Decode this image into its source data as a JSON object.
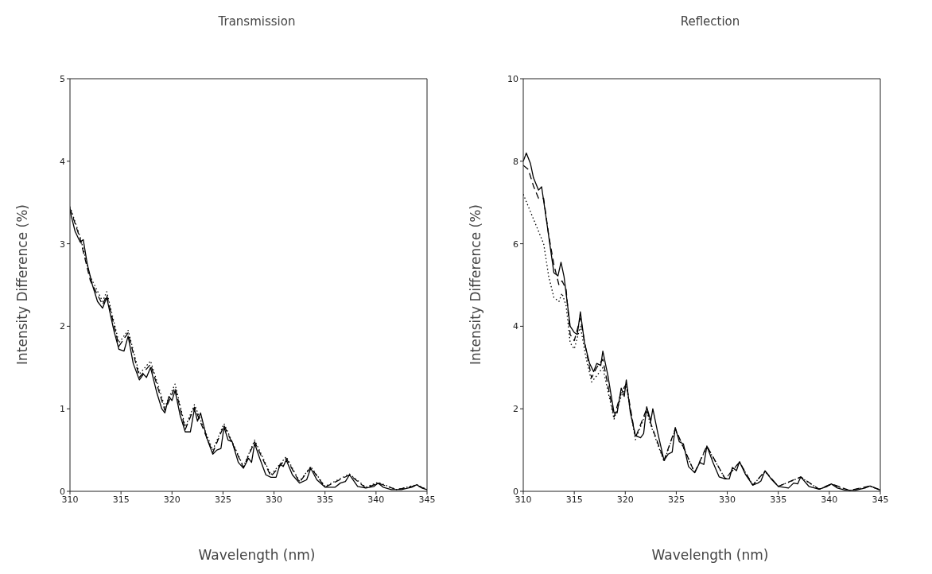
{
  "chart_data": [
    {
      "type": "line",
      "title": "Transmission",
      "xlabel": "Wavelength (nm)",
      "ylabel": "Intensity Difference (%)",
      "xlim": [
        310,
        345
      ],
      "xticks": [
        310,
        315,
        320,
        325,
        330,
        335,
        340,
        345
      ],
      "ylim": [
        0,
        5
      ],
      "yticks": [
        0,
        1,
        2,
        3,
        4,
        5
      ],
      "grid": false,
      "legend": false,
      "marker": "none",
      "series": [
        {
          "color": "#000000",
          "line_style": "solid",
          "x": [
            310,
            310.5,
            311,
            311.3,
            311.7,
            312.2,
            312.7,
            313.2,
            313.6,
            314.3,
            314.8,
            315.3,
            315.7,
            316.2,
            316.8,
            317.2,
            317.5,
            317.9,
            318.5,
            319,
            319.3,
            319.7,
            320,
            320.3,
            320.8,
            321.3,
            321.8,
            322.2,
            322.5,
            322.8,
            323.4,
            324,
            324.4,
            324.8,
            325.1,
            325.5,
            325.9,
            326.5,
            327,
            327.5,
            327.8,
            328.1,
            328.6,
            329.2,
            329.7,
            330.2,
            330.6,
            330.9,
            331.2,
            331.8,
            332.5,
            333.2,
            333.6,
            334.2,
            335,
            336,
            336.5,
            337,
            337.4,
            338.2,
            339,
            339.8,
            340.2,
            340.7,
            341.5,
            342.5,
            343.5,
            344,
            344.5,
            345
          ],
          "values": [
            3.4,
            3.15,
            3.02,
            3.05,
            2.75,
            2.5,
            2.3,
            2.22,
            2.35,
            1.95,
            1.72,
            1.7,
            1.88,
            1.55,
            1.35,
            1.42,
            1.38,
            1.5,
            1.2,
            1.0,
            0.95,
            1.15,
            1.1,
            1.22,
            0.92,
            0.72,
            0.72,
            1.0,
            0.85,
            0.95,
            0.65,
            0.45,
            0.5,
            0.52,
            0.78,
            0.62,
            0.6,
            0.35,
            0.28,
            0.4,
            0.35,
            0.58,
            0.4,
            0.2,
            0.17,
            0.17,
            0.33,
            0.3,
            0.38,
            0.2,
            0.1,
            0.14,
            0.28,
            0.14,
            0.05,
            0.05,
            0.1,
            0.12,
            0.2,
            0.06,
            0.04,
            0.06,
            0.1,
            0.05,
            0.02,
            0.02,
            0.05,
            0.08,
            0.04,
            0.02
          ]
        },
        {
          "color": "#000000",
          "line_style": "dashed",
          "x": [
            310,
            311,
            312,
            313.2,
            313.6,
            314.8,
            315.7,
            316.8,
            317.9,
            319.3,
            320.3,
            321.3,
            322.2,
            324,
            325.1,
            327,
            328.1,
            329.7,
            331.2,
            332.5,
            333.6,
            335,
            337.4,
            339,
            340.2,
            342,
            344,
            345
          ],
          "values": [
            3.43,
            3.06,
            2.55,
            2.26,
            2.38,
            1.76,
            1.92,
            1.38,
            1.54,
            0.98,
            1.26,
            0.75,
            1.02,
            0.47,
            0.8,
            0.29,
            0.6,
            0.18,
            0.4,
            0.11,
            0.29,
            0.05,
            0.2,
            0.04,
            0.1,
            0.02,
            0.07,
            0.02
          ]
        },
        {
          "color": "#000000",
          "line_style": "dotted",
          "x": [
            310,
            311,
            312,
            313.2,
            313.6,
            314.8,
            315.7,
            316.8,
            317.9,
            319.3,
            320.3,
            321.3,
            322.2,
            324,
            325.1,
            327,
            328.1,
            329.7,
            331.2,
            332.5,
            333.6,
            335,
            337.4,
            339,
            340.2,
            342,
            344,
            345
          ],
          "values": [
            3.45,
            3.08,
            2.6,
            2.3,
            2.42,
            1.8,
            1.95,
            1.42,
            1.58,
            1.02,
            1.3,
            0.78,
            1.05,
            0.5,
            0.82,
            0.3,
            0.62,
            0.2,
            0.42,
            0.12,
            0.3,
            0.06,
            0.21,
            0.05,
            0.11,
            0.02,
            0.08,
            0.02
          ]
        }
      ]
    },
    {
      "type": "line",
      "title": "Reflection",
      "xlabel": "Wavelength (nm)",
      "ylabel": "Intensity Difference (%)",
      "xlim": [
        310,
        345
      ],
      "xticks": [
        310,
        315,
        320,
        325,
        330,
        335,
        340,
        345
      ],
      "ylim": [
        0,
        10
      ],
      "yticks": [
        0,
        2,
        4,
        6,
        8,
        10
      ],
      "grid": false,
      "legend": false,
      "marker": "none",
      "series": [
        {
          "color": "#000000",
          "line_style": "solid",
          "x": [
            310,
            310.3,
            310.7,
            311,
            311.5,
            311.8,
            312.2,
            312.6,
            313,
            313.4,
            313.7,
            314,
            314.6,
            315,
            315.3,
            315.6,
            316,
            316.5,
            316.9,
            317.2,
            317.6,
            317.8,
            318.3,
            318.9,
            319.2,
            319.6,
            319.9,
            320.1,
            320.5,
            321,
            321.5,
            321.8,
            322.1,
            322.5,
            322.7,
            323.2,
            323.8,
            324.2,
            324.6,
            324.9,
            325.3,
            325.7,
            326.2,
            326.8,
            327.3,
            327.7,
            328,
            328.6,
            329.2,
            329.8,
            330.2,
            330.5,
            330.9,
            331.2,
            331.8,
            332.5,
            333,
            333.3,
            333.7,
            334.3,
            335,
            336,
            336.5,
            336.9,
            337.2,
            338,
            339,
            339.8,
            340.2,
            340.8,
            341.5,
            342.5,
            343.5,
            344,
            344.5,
            345
          ],
          "values": [
            8.0,
            8.2,
            7.95,
            7.6,
            7.3,
            7.38,
            6.7,
            6.0,
            5.3,
            5.22,
            5.55,
            5.2,
            4.0,
            3.85,
            3.8,
            4.35,
            3.6,
            3.1,
            2.9,
            3.1,
            3.05,
            3.4,
            2.8,
            1.9,
            1.9,
            2.5,
            2.3,
            2.7,
            1.9,
            1.35,
            1.3,
            1.4,
            2.05,
            1.7,
            2.0,
            1.4,
            0.75,
            0.9,
            0.95,
            1.55,
            1.2,
            1.15,
            0.6,
            0.45,
            0.7,
            0.65,
            1.1,
            0.7,
            0.35,
            0.3,
            0.3,
            0.58,
            0.5,
            0.72,
            0.4,
            0.15,
            0.2,
            0.25,
            0.5,
            0.3,
            0.12,
            0.08,
            0.2,
            0.18,
            0.35,
            0.12,
            0.05,
            0.12,
            0.18,
            0.08,
            0.03,
            0.02,
            0.08,
            0.13,
            0.08,
            0.03
          ]
        },
        {
          "color": "#000000",
          "line_style": "dashed",
          "x": [
            310,
            310.5,
            311,
            311.5,
            312,
            312.5,
            313,
            313.5,
            313.8,
            314.2,
            314.6,
            315,
            315.6,
            316.1,
            316.7,
            317.2,
            317.8,
            318.9,
            319.6,
            320.1,
            321,
            322.1,
            322.5,
            323.8,
            324.9,
            326.8,
            328,
            329.8,
            331.2,
            332.5,
            333.7,
            335,
            337.2,
            339,
            340.2,
            342,
            344,
            345
          ],
          "values": [
            7.9,
            7.8,
            7.4,
            7.1,
            7.1,
            6.2,
            5.5,
            5.0,
            5.1,
            4.9,
            3.8,
            3.65,
            4.2,
            3.5,
            2.75,
            3.0,
            3.2,
            1.8,
            2.4,
            2.6,
            1.3,
            2.0,
            1.65,
            0.75,
            1.52,
            0.45,
            1.1,
            0.3,
            0.71,
            0.15,
            0.49,
            0.12,
            0.35,
            0.05,
            0.18,
            0.02,
            0.13,
            0.03
          ]
        },
        {
          "color": "#000000",
          "line_style": "dotted",
          "x": [
            310,
            310.5,
            311,
            311.5,
            312,
            312.5,
            313,
            313.5,
            313.8,
            314.2,
            314.6,
            315,
            315.6,
            316.1,
            316.7,
            317.2,
            317.8,
            318.9,
            319.6,
            320.1,
            321,
            322.1,
            322.5,
            323.8,
            324.9,
            326.8,
            328,
            329.8,
            331.2,
            332.5,
            333.7,
            335,
            337.2,
            339,
            340.2,
            342,
            344,
            345
          ],
          "values": [
            7.2,
            6.9,
            6.6,
            6.3,
            6.0,
            5.2,
            4.7,
            4.6,
            4.8,
            4.5,
            3.6,
            3.45,
            4.0,
            3.3,
            2.65,
            2.8,
            3.0,
            1.75,
            2.3,
            2.55,
            1.25,
            1.95,
            1.6,
            0.72,
            1.5,
            0.45,
            1.08,
            0.3,
            0.7,
            0.15,
            0.48,
            0.12,
            0.34,
            0.05,
            0.17,
            0.02,
            0.12,
            0.03
          ]
        }
      ]
    }
  ]
}
